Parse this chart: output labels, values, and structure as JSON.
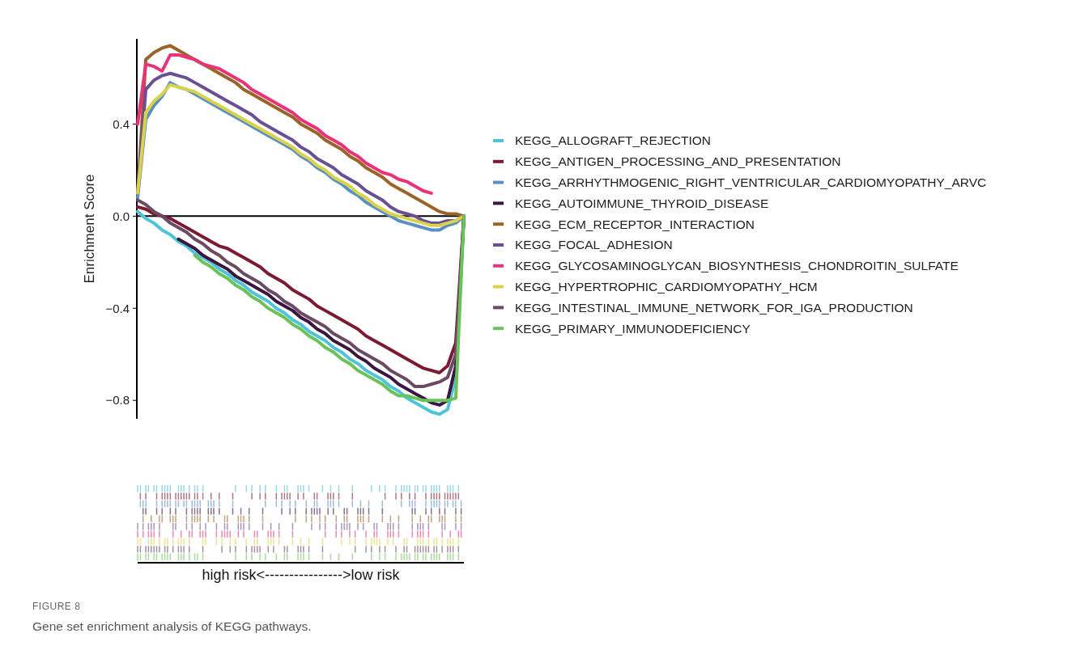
{
  "chart_data": {
    "type": "line",
    "ylabel": "Enrichment Score",
    "categories": [
      null,
      null,
      null,
      null,
      null,
      null,
      null,
      null,
      null,
      null,
      null,
      null,
      null,
      null,
      null,
      null,
      null,
      null,
      null,
      null,
      null,
      null,
      null,
      null,
      null,
      null,
      null,
      null,
      null,
      null,
      null,
      null,
      null,
      null,
      null,
      null,
      null,
      null,
      null,
      null,
      null
    ],
    "ylim": [
      -0.88,
      0.77
    ],
    "yticks": [
      {
        "value": 0.4,
        "label": "0.4"
      },
      {
        "value": 0,
        "label": "0.0"
      },
      {
        "value": -0.4,
        "label": "−0.4"
      },
      {
        "value": -0.8,
        "label": "−0.8"
      }
    ],
    "tick_labels": "y",
    "grid": false,
    "legend": "right",
    "marker": "none",
    "line_style": "solid",
    "ref_lines": [
      {
        "axis": "y",
        "value": 0,
        "color": "#000000"
      }
    ],
    "annotations": [
      "high risk<---------------->low risk",
      "FIGURE 8",
      "Gene set enrichment analysis of KEGG pathways."
    ],
    "series": [
      {
        "name": "KEGG_ALLOGRAFT_REJECTION",
        "color": "#4fc3d8",
        "values": [
          0.02,
          -0.01,
          -0.03,
          -0.06,
          -0.08,
          -0.11,
          -0.13,
          -0.16,
          -0.18,
          -0.2,
          -0.23,
          -0.25,
          -0.28,
          -0.3,
          -0.33,
          -0.35,
          -0.37,
          -0.4,
          -0.42,
          -0.45,
          -0.47,
          -0.5,
          -0.52,
          -0.54,
          -0.57,
          -0.59,
          -0.62,
          -0.64,
          -0.67,
          -0.69,
          -0.71,
          -0.74,
          -0.76,
          -0.79,
          -0.81,
          -0.83,
          -0.85,
          -0.86,
          -0.84,
          -0.7,
          0
        ]
      },
      {
        "name": "KEGG_ANTIGEN_PROCESSING_AND_PRESENTATION",
        "color": "#7b1a30",
        "values": [
          0.04,
          0.03,
          0.01,
          0,
          -0.01,
          -0.03,
          -0.05,
          -0.07,
          -0.09,
          -0.11,
          -0.13,
          -0.14,
          -0.16,
          -0.18,
          -0.2,
          -0.22,
          -0.25,
          -0.27,
          -0.29,
          -0.32,
          -0.34,
          -0.36,
          -0.39,
          -0.41,
          -0.43,
          -0.45,
          -0.47,
          -0.49,
          -0.52,
          -0.54,
          -0.56,
          -0.58,
          -0.6,
          -0.62,
          -0.64,
          -0.66,
          -0.67,
          -0.68,
          -0.65,
          -0.55,
          0
        ]
      },
      {
        "name": "KEGG_ARRHYTHMOGENIC_RIGHT_VENTRICULAR_CARDIOMYOPATHY_ARVC",
        "color": "#5b8fc4",
        "values": [
          0.08,
          0.42,
          0.48,
          0.52,
          0.58,
          0.56,
          0.55,
          0.53,
          0.51,
          0.49,
          0.47,
          0.45,
          0.43,
          0.41,
          0.39,
          0.37,
          0.35,
          0.33,
          0.31,
          0.29,
          0.26,
          0.24,
          0.21,
          0.19,
          0.16,
          0.14,
          0.11,
          0.09,
          0.06,
          0.04,
          0.02,
          0,
          -0.02,
          -0.03,
          -0.04,
          -0.05,
          -0.06,
          -0.06,
          -0.04,
          -0.03,
          0
        ]
      },
      {
        "name": "KEGG_AUTOIMMUNE_THYROID_DISEASE",
        "color": "#3a1640",
        "values": [
          null,
          null,
          null,
          null,
          null,
          -0.1,
          -0.12,
          -0.14,
          -0.17,
          -0.19,
          -0.21,
          -0.23,
          -0.26,
          -0.28,
          -0.3,
          -0.32,
          -0.34,
          -0.37,
          -0.39,
          -0.41,
          -0.44,
          -0.46,
          -0.49,
          -0.51,
          -0.54,
          -0.56,
          -0.58,
          -0.61,
          -0.63,
          -0.66,
          -0.68,
          -0.7,
          -0.73,
          -0.75,
          -0.77,
          -0.79,
          -0.81,
          -0.82,
          -0.8,
          -0.65,
          0
        ]
      },
      {
        "name": "KEGG_ECM_RECEPTOR_INTERACTION",
        "color": "#9a6428",
        "values": [
          0.1,
          0.68,
          0.71,
          0.73,
          0.74,
          0.72,
          0.7,
          0.68,
          0.66,
          0.64,
          0.62,
          0.6,
          0.58,
          0.55,
          0.53,
          0.51,
          0.49,
          0.47,
          0.45,
          0.43,
          0.4,
          0.38,
          0.36,
          0.33,
          0.31,
          0.29,
          0.26,
          0.24,
          0.21,
          0.19,
          0.17,
          0.14,
          0.12,
          0.1,
          0.08,
          0.06,
          0.04,
          0.02,
          0.01,
          0.01,
          0
        ]
      },
      {
        "name": "KEGG_FOCAL_ADHESION",
        "color": "#6b4f93",
        "values": [
          0.1,
          0.55,
          0.59,
          0.61,
          0.62,
          0.61,
          0.6,
          0.58,
          0.56,
          0.54,
          0.52,
          0.5,
          0.48,
          0.46,
          0.44,
          0.41,
          0.39,
          0.37,
          0.35,
          0.33,
          0.3,
          0.28,
          0.25,
          0.23,
          0.21,
          0.18,
          0.16,
          0.14,
          0.11,
          0.09,
          0.07,
          0.04,
          0.02,
          0.01,
          0,
          -0.02,
          -0.03,
          -0.03,
          -0.02,
          -0.02,
          0
        ]
      },
      {
        "name": "KEGG_GLYCOSAMINOGLYCAN_BIOSYNTHESIS_CHONDROITIN_SULFATE",
        "color": "#e8327a",
        "values": [
          0.4,
          0.66,
          0.65,
          0.63,
          0.7,
          0.7,
          0.69,
          0.68,
          0.66,
          0.65,
          0.64,
          0.62,
          0.6,
          0.58,
          0.55,
          0.53,
          0.51,
          0.49,
          0.47,
          0.45,
          0.42,
          0.4,
          0.38,
          0.35,
          0.33,
          0.31,
          0.28,
          0.26,
          0.23,
          0.21,
          0.19,
          0.18,
          0.16,
          0.15,
          0.13,
          0.11,
          0.1,
          null,
          null,
          null,
          null
        ]
      },
      {
        "name": "KEGG_HYPERTROPHIC_CARDIOMYOPATHY_HCM",
        "color": "#d8d34a",
        "values": [
          0.1,
          0.45,
          0.5,
          0.53,
          0.57,
          0.56,
          0.55,
          0.54,
          0.52,
          0.5,
          0.48,
          0.46,
          0.44,
          0.42,
          0.4,
          0.38,
          0.36,
          0.34,
          0.32,
          0.3,
          0.27,
          0.25,
          0.22,
          0.2,
          0.17,
          0.15,
          0.13,
          0.1,
          0.08,
          0.05,
          0.03,
          0.01,
          0,
          -0.01,
          -0.02,
          -0.03,
          -0.04,
          -0.04,
          -0.03,
          -0.02,
          0
        ]
      },
      {
        "name": "KEGG_INTESTINAL_IMMUNE_NETWORK_FOR_IGA_PRODUCTION",
        "color": "#6b4a63",
        "values": [
          0.07,
          0.05,
          0.02,
          0,
          -0.03,
          -0.05,
          -0.07,
          -0.1,
          -0.12,
          -0.15,
          -0.17,
          -0.2,
          -0.22,
          -0.25,
          -0.27,
          -0.29,
          -0.32,
          -0.34,
          -0.37,
          -0.39,
          -0.42,
          -0.44,
          -0.46,
          -0.48,
          -0.51,
          -0.53,
          -0.55,
          -0.58,
          -0.6,
          -0.62,
          -0.64,
          -0.67,
          -0.69,
          -0.71,
          -0.74,
          -0.74,
          -0.73,
          -0.72,
          -0.7,
          -0.6,
          0
        ]
      },
      {
        "name": "KEGG_PRIMARY_IMMUNODEFICIENCY",
        "color": "#6cc25a",
        "values": [
          null,
          null,
          null,
          null,
          null,
          null,
          null,
          -0.17,
          -0.2,
          -0.22,
          -0.25,
          -0.27,
          -0.3,
          -0.32,
          -0.35,
          -0.37,
          -0.4,
          -0.42,
          -0.44,
          -0.47,
          -0.49,
          -0.52,
          -0.54,
          -0.57,
          -0.59,
          -0.62,
          -0.64,
          -0.67,
          -0.69,
          -0.71,
          -0.73,
          -0.76,
          -0.78,
          -0.78,
          -0.79,
          -0.8,
          -0.8,
          -0.8,
          -0.8,
          -0.79,
          0
        ]
      }
    ]
  }
}
